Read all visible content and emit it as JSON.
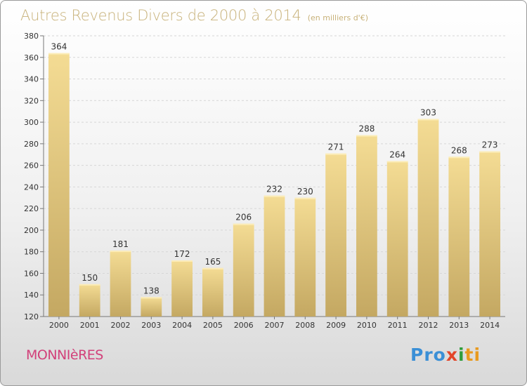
{
  "header": {
    "title": "Autres Revenus Divers de 2000 à 2014",
    "unit": "(en milliers d'€)"
  },
  "footer": {
    "commune": "MONNIèRES",
    "logo": {
      "p1": "Pro",
      "p2": "x",
      "p3": "i",
      "p4": "ti"
    }
  },
  "colors": {
    "bar_top": "#f4dc94",
    "bar_bottom": "#c4a862",
    "title": "#c8b27a",
    "commune": "#d2417a"
  },
  "chart_data": {
    "type": "bar",
    "title": "Autres Revenus Divers de 2000 à 2014",
    "subtitle": "(en milliers d'€)",
    "categories": [
      "2000",
      "2001",
      "2002",
      "2003",
      "2004",
      "2005",
      "2006",
      "2007",
      "2008",
      "2009",
      "2010",
      "2011",
      "2012",
      "2013",
      "2014"
    ],
    "values": [
      364,
      150,
      181,
      138,
      172,
      165,
      206,
      232,
      230,
      271,
      288,
      264,
      303,
      268,
      273
    ],
    "ylim": [
      120,
      380
    ],
    "yticks": [
      120,
      140,
      160,
      180,
      200,
      220,
      240,
      260,
      280,
      300,
      320,
      340,
      360,
      380
    ],
    "grid": true,
    "data_labels": true
  }
}
